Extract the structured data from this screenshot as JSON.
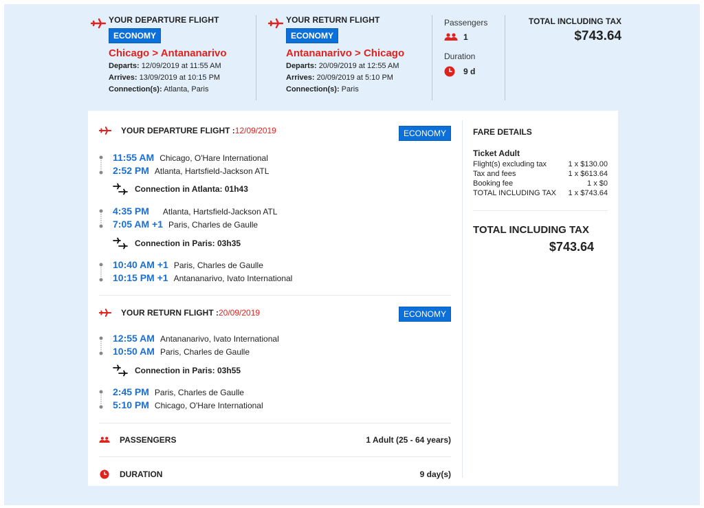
{
  "summary": {
    "departure": {
      "title": "YOUR DEPARTURE FLIGHT",
      "cabin": "ECONOMY",
      "route": "Chicago > Antananarivo",
      "departs_label": "Departs:",
      "departs_value": "12/09/2019 at 11:55 AM",
      "arrives_label": "Arrives:",
      "arrives_value": "13/09/2019 at 10:15 PM",
      "connections_label": "Connection(s):",
      "connections_value": "Atlanta, Paris"
    },
    "return": {
      "title": "YOUR RETURN FLIGHT",
      "cabin": "ECONOMY",
      "route": "Antananarivo > Chicago",
      "departs_label": "Departs:",
      "departs_value": "20/09/2019 at 12:55 AM",
      "arrives_label": "Arrives:",
      "arrives_value": "20/09/2019 at 5:10 PM",
      "connections_label": "Connection(s):",
      "connections_value": "Paris"
    },
    "passengers_label": "Passengers",
    "passengers_count": "1",
    "duration_label": "Duration",
    "duration_value": "9 d",
    "total_label": "TOTAL INCLUDING TAX",
    "total_value": "$743.64"
  },
  "details": {
    "departure": {
      "title": "YOUR DEPARTURE FLIGHT : ",
      "date": "12/09/2019",
      "cabin": "ECONOMY",
      "segments": [
        {
          "dep_time": "11:55 AM",
          "dep_place": "Chicago, O'Hare International",
          "arr_time": "2:52 PM",
          "arr_place": "Atlanta, Hartsfield-Jackson ATL"
        },
        {
          "dep_time": "4:35 PM",
          "dep_place": "Atlanta, Hartsfield-Jackson ATL",
          "arr_time": "7:05 AM +1",
          "arr_place": "Paris, Charles de Gaulle"
        },
        {
          "dep_time": "10:40 AM +1",
          "dep_place": "Paris, Charles de Gaulle",
          "arr_time": "10:15 PM +1",
          "arr_place": "Antananarivo, Ivato International"
        }
      ],
      "connections": [
        "Connection in Atlanta: 01h43",
        "Connection in Paris: 03h35"
      ]
    },
    "return": {
      "title": "YOUR RETURN FLIGHT : ",
      "date": "20/09/2019",
      "cabin": "ECONOMY",
      "segments": [
        {
          "dep_time": "12:55 AM",
          "dep_place": "Antananarivo, Ivato International",
          "arr_time": "10:50 AM",
          "arr_place": "Paris, Charles de Gaulle"
        },
        {
          "dep_time": "2:45 PM",
          "dep_place": "Paris, Charles de Gaulle",
          "arr_time": "5:10 PM",
          "arr_place": "Chicago, O'Hare International"
        }
      ],
      "connections": [
        "Connection in Paris: 03h55"
      ]
    },
    "passengers_label": "PASSENGERS",
    "passengers_value": "1 Adult (25 - 64 years)",
    "duration_label": "DURATION",
    "duration_value": "9 day(s)"
  },
  "fare": {
    "title": "FARE DETAILS",
    "subtitle": "Ticket Adult",
    "rows": [
      {
        "label": "Flight(s) excluding tax",
        "value": "1 x $130.00"
      },
      {
        "label": "Tax and fees",
        "value": "1 x $613.64"
      },
      {
        "label": "Booking fee",
        "value": "1 x $0"
      },
      {
        "label": "TOTAL INCLUDING TAX",
        "value": "1 x $743.64"
      }
    ],
    "total_label": "TOTAL INCLUDING TAX",
    "total_value": "$743.64"
  },
  "colors": {
    "accent_red": "#e0221e",
    "accent_blue": "#1a6fd6",
    "badge_blue": "#0d6fd8",
    "background": "#e3f0fb"
  }
}
